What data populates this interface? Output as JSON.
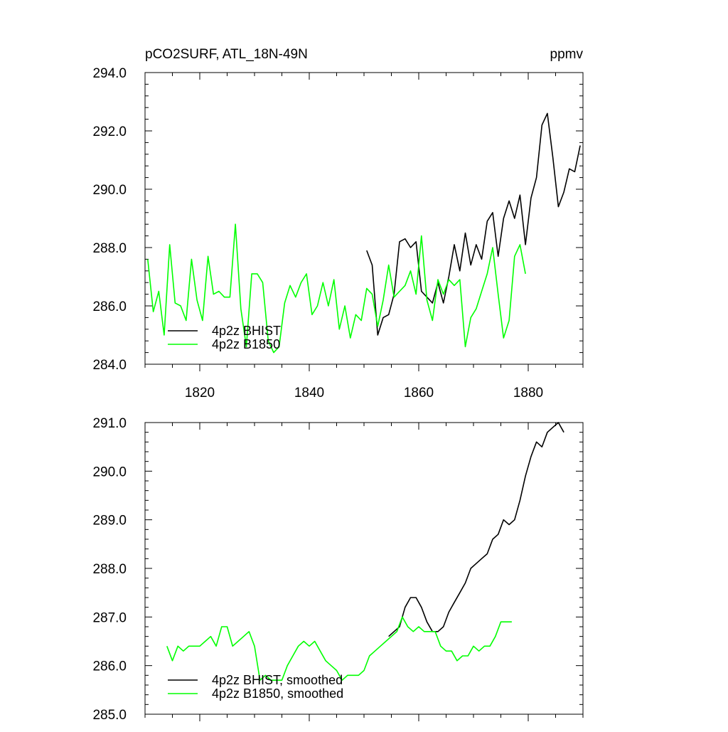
{
  "chart_data": [
    {
      "type": "line",
      "title": "pCO2SURF, ATL_18N-49N",
      "units": "ppmv",
      "xlim": [
        1810,
        1890
      ],
      "ylim": [
        284.0,
        294.0
      ],
      "y_ticks": [
        284.0,
        286.0,
        288.0,
        290.0,
        292.0,
        294.0
      ],
      "y_tick_labels": [
        "284.0",
        "286.0",
        "288.0",
        "290.0",
        "292.0",
        "294.0"
      ],
      "x_ticks": [
        1820,
        1840,
        1860,
        1880
      ],
      "x_tick_labels": [
        "1820",
        "1840",
        "1860",
        "1880"
      ],
      "grid": false,
      "legend_placement": "lower-left",
      "series": [
        {
          "name": "4p2z BHIST",
          "color": "#000000",
          "x": [
            1850.5,
            1851.5,
            1852.5,
            1853.5,
            1854.5,
            1855.5,
            1856.5,
            1857.5,
            1858.5,
            1859.5,
            1860.5,
            1861.5,
            1862.5,
            1863.5,
            1864.5,
            1865.5,
            1866.5,
            1867.5,
            1868.5,
            1869.5,
            1870.5,
            1871.5,
            1872.5,
            1873.5,
            1874.5,
            1875.5,
            1876.5,
            1877.5,
            1878.5,
            1879.5,
            1880.5,
            1881.5,
            1882.5,
            1883.5,
            1884.5,
            1885.5,
            1886.5,
            1887.5,
            1888.5,
            1889.5
          ],
          "y": [
            287.9,
            287.4,
            285.0,
            285.6,
            285.7,
            286.4,
            288.2,
            288.3,
            288.0,
            288.2,
            286.5,
            286.3,
            286.1,
            286.8,
            286.1,
            287.0,
            288.1,
            287.2,
            288.5,
            287.4,
            288.1,
            287.6,
            288.9,
            289.2,
            287.7,
            289.0,
            289.6,
            289.0,
            289.8,
            288.1,
            289.7,
            290.4,
            292.2,
            292.6,
            291.1,
            289.4,
            289.9,
            290.7,
            290.6,
            291.5
          ]
        },
        {
          "name": "4p2z B1850",
          "color": "#00ff00",
          "x": [
            1810.5,
            1811.5,
            1812.5,
            1813.5,
            1814.5,
            1815.5,
            1816.5,
            1817.5,
            1818.5,
            1819.5,
            1820.5,
            1821.5,
            1822.5,
            1823.5,
            1824.5,
            1825.5,
            1826.5,
            1827.5,
            1828.5,
            1829.5,
            1830.5,
            1831.5,
            1832.5,
            1833.5,
            1834.5,
            1835.5,
            1836.5,
            1837.5,
            1838.5,
            1839.5,
            1840.5,
            1841.5,
            1842.5,
            1843.5,
            1844.5,
            1845.5,
            1846.5,
            1847.5,
            1848.5,
            1849.5,
            1850.5,
            1851.5,
            1852.5,
            1853.5,
            1854.5,
            1855.5,
            1856.5,
            1857.5,
            1858.5,
            1859.5,
            1860.5,
            1861.5,
            1862.5,
            1863.5,
            1864.5,
            1865.5,
            1866.5,
            1867.5,
            1868.5,
            1869.5,
            1870.5,
            1871.5,
            1872.5,
            1873.5,
            1874.5,
            1875.5,
            1876.5,
            1877.5,
            1878.5,
            1879.5
          ],
          "y": [
            287.6,
            285.8,
            286.5,
            285.0,
            288.1,
            286.1,
            286.0,
            285.5,
            287.6,
            286.2,
            285.5,
            287.7,
            286.4,
            286.5,
            286.3,
            286.3,
            288.8,
            285.9,
            284.6,
            287.1,
            287.1,
            286.8,
            284.8,
            284.4,
            284.6,
            286.1,
            286.7,
            286.3,
            286.8,
            287.1,
            285.7,
            286.0,
            286.8,
            286.0,
            286.9,
            285.2,
            286.0,
            284.9,
            285.7,
            285.5,
            286.6,
            286.4,
            285.3,
            286.2,
            287.4,
            286.3,
            286.5,
            286.7,
            287.2,
            286.4,
            288.4,
            286.2,
            285.5,
            286.9,
            286.4,
            286.9,
            286.7,
            286.9,
            284.6,
            285.6,
            285.9,
            286.5,
            287.1,
            288.0,
            286.4,
            284.9,
            285.5,
            287.7,
            288.1,
            287.1
          ]
        }
      ]
    },
    {
      "type": "line",
      "xlim": [
        1810,
        1890
      ],
      "ylim": [
        285.0,
        291.0
      ],
      "y_ticks": [
        285.0,
        286.0,
        287.0,
        288.0,
        289.0,
        290.0,
        291.0
      ],
      "y_tick_labels": [
        "285.0",
        "286.0",
        "287.0",
        "288.0",
        "289.0",
        "290.0",
        "291.0"
      ],
      "x_ticks": [
        1820,
        1840,
        1860,
        1880
      ],
      "grid": false,
      "legend_placement": "lower-left",
      "series": [
        {
          "name": "4p2z BHIST, smoothed",
          "color": "#000000",
          "x": [
            1854.5,
            1855.5,
            1856.5,
            1857.5,
            1858.5,
            1859.5,
            1860.5,
            1861.5,
            1862.5,
            1863.5,
            1864.5,
            1865.5,
            1866.5,
            1867.5,
            1868.5,
            1869.5,
            1870.5,
            1871.5,
            1872.5,
            1873.5,
            1874.5,
            1875.5,
            1876.5,
            1877.5,
            1878.5,
            1879.5,
            1880.5,
            1881.5,
            1882.5,
            1883.5,
            1884.5,
            1885.5,
            1886.5
          ],
          "y": [
            286.6,
            286.7,
            286.8,
            287.2,
            287.4,
            287.4,
            287.2,
            286.9,
            286.7,
            286.7,
            286.8,
            287.1,
            287.3,
            287.5,
            287.7,
            288.0,
            288.1,
            288.2,
            288.3,
            288.6,
            288.7,
            289.0,
            288.9,
            289.0,
            289.4,
            289.9,
            290.3,
            290.6,
            290.5,
            290.8,
            290.9,
            291.0,
            290.8
          ]
        },
        {
          "name": "4p2z B1850, smoothed",
          "color": "#00ff00",
          "x": [
            1814,
            1815,
            1816,
            1817,
            1818,
            1819,
            1820,
            1821,
            1822,
            1823,
            1824,
            1825,
            1826,
            1827,
            1828,
            1829,
            1830,
            1831,
            1832,
            1833,
            1834,
            1835,
            1836,
            1837,
            1838,
            1839,
            1840,
            1841,
            1842,
            1843,
            1844,
            1845,
            1846,
            1847,
            1848,
            1849,
            1850,
            1851,
            1852,
            1853,
            1854,
            1855,
            1856,
            1857,
            1858,
            1859,
            1860,
            1861,
            1862,
            1863,
            1864,
            1865,
            1866,
            1867,
            1868,
            1869,
            1870,
            1871,
            1872,
            1873,
            1874,
            1875,
            1876,
            1877
          ],
          "y": [
            286.4,
            286.1,
            286.4,
            286.3,
            286.4,
            286.4,
            286.4,
            286.5,
            286.6,
            286.4,
            286.8,
            286.8,
            286.4,
            286.5,
            286.6,
            286.7,
            286.4,
            285.7,
            285.8,
            285.7,
            285.7,
            285.7,
            286.0,
            286.2,
            286.4,
            286.5,
            286.4,
            286.5,
            286.3,
            286.1,
            286.0,
            285.9,
            285.7,
            285.8,
            285.8,
            285.8,
            285.9,
            286.2,
            286.3,
            286.4,
            286.5,
            286.6,
            286.7,
            287.0,
            286.8,
            286.7,
            286.8,
            286.7,
            286.7,
            286.7,
            286.4,
            286.3,
            286.3,
            286.1,
            286.2,
            286.2,
            286.4,
            286.3,
            286.4,
            286.4,
            286.6,
            286.9,
            286.9,
            286.9
          ]
        }
      ]
    }
  ]
}
